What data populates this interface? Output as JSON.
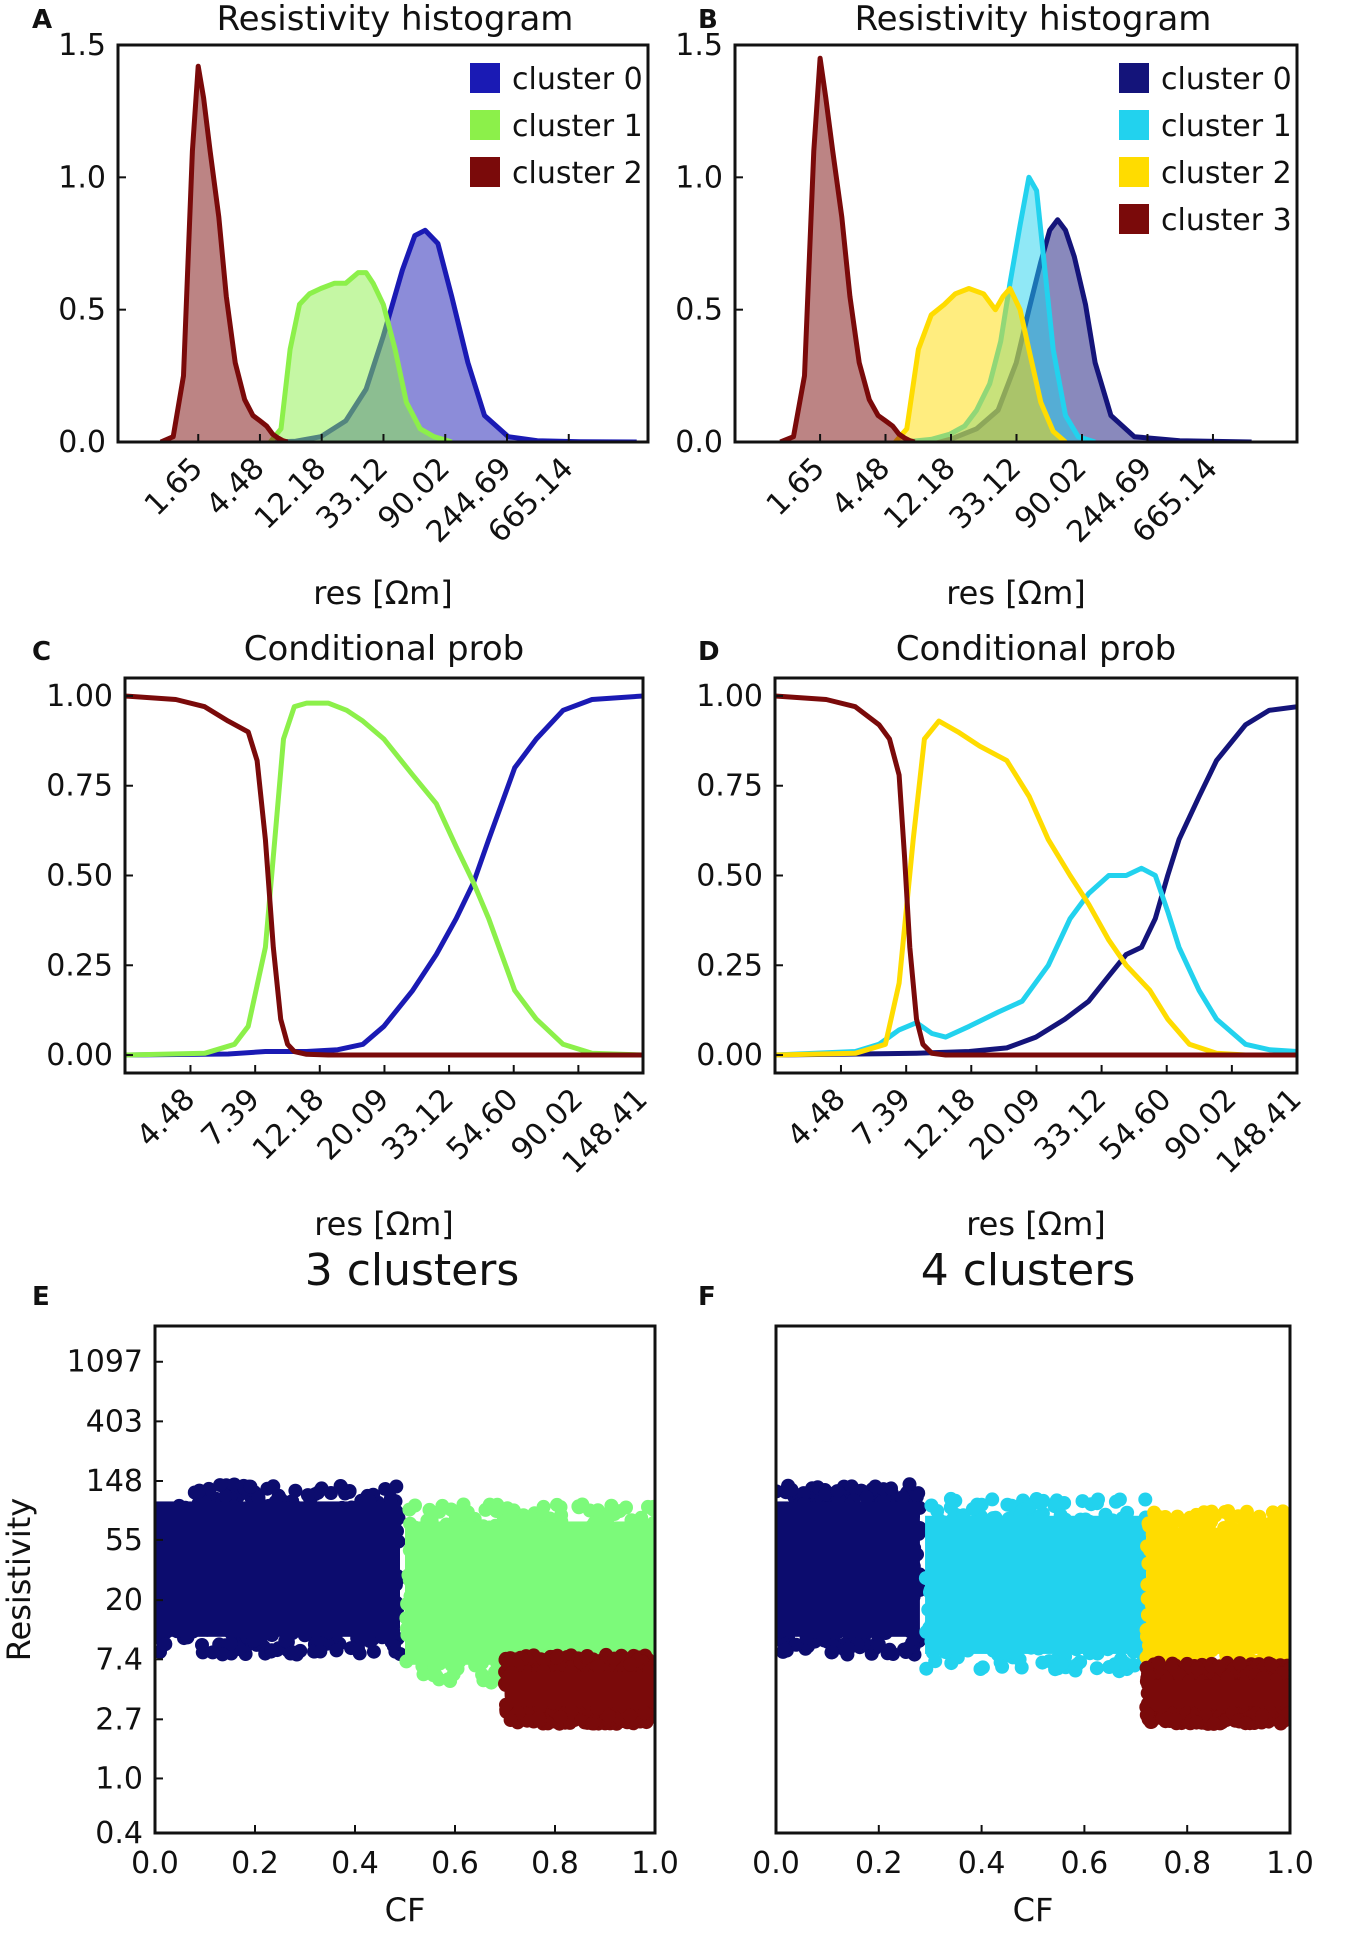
{
  "colors": {
    "c0_3": "#1a1ab4",
    "c1_3": "#8cf04a",
    "c2_3": "#7a0a0a",
    "c0_4": "#14147a",
    "c1_4": "#22d2ee",
    "c2_4": "#ffdc00",
    "c3_4": "#7a0a0a",
    "c0_4_scatter": "#0c0c6e",
    "c1_3_scatter": "#7cfa7a"
  },
  "chart_data": [
    {
      "id": "A",
      "letter": "A",
      "type": "area",
      "title": "Resistivity histogram",
      "xlabel": "res [Ωm]",
      "ylabel": "",
      "x_scale": "log",
      "xlim": [
        0.45,
        2400
      ],
      "ylim": [
        0,
        1.5
      ],
      "yticks": [
        0.0,
        0.5,
        1.0,
        1.5
      ],
      "yticklabels": [
        "0.0",
        "0.5",
        "1.0",
        "1.5"
      ],
      "xticks": [
        1.65,
        4.48,
        12.18,
        33.12,
        90.02,
        244.69,
        665.14
      ],
      "xticklabels": [
        "1.65",
        "4.48",
        "12.18",
        "33.12",
        "90.02",
        "244.69",
        "665.14"
      ],
      "legend": [
        "cluster 0",
        "cluster 1",
        "cluster 2"
      ],
      "series": [
        {
          "name": "cluster 0",
          "color_key": "c0_3",
          "x": [
            5.5,
            8,
            12,
            18,
            25,
            33,
            45,
            55,
            65,
            80,
            100,
            130,
            170,
            250,
            400,
            800,
            2000
          ],
          "y": [
            0,
            0.003,
            0.02,
            0.08,
            0.2,
            0.4,
            0.65,
            0.78,
            0.8,
            0.75,
            0.55,
            0.3,
            0.1,
            0.02,
            0.005,
            0.001,
            0
          ]
        },
        {
          "name": "cluster 1",
          "color_key": "c1_3",
          "x": [
            5.3,
            6.3,
            7.3,
            8.5,
            10,
            12,
            15,
            18,
            22,
            25,
            28,
            33,
            40,
            48,
            60,
            75,
            100
          ],
          "y": [
            0,
            0.05,
            0.35,
            0.52,
            0.56,
            0.58,
            0.6,
            0.6,
            0.64,
            0.64,
            0.6,
            0.52,
            0.35,
            0.15,
            0.05,
            0.02,
            0
          ]
        },
        {
          "name": "cluster 2",
          "color_key": "c2_3",
          "x": [
            0.9,
            1.1,
            1.3,
            1.5,
            1.65,
            1.8,
            2.0,
            2.3,
            2.6,
            3.0,
            3.5,
            4.0,
            4.48,
            5.0,
            5.5,
            6.0,
            6.5,
            7.0
          ],
          "y": [
            0,
            0.02,
            0.25,
            1.1,
            1.42,
            1.3,
            1.1,
            0.85,
            0.55,
            0.3,
            0.16,
            0.1,
            0.08,
            0.06,
            0.03,
            0.015,
            0.005,
            0
          ]
        }
      ]
    },
    {
      "id": "B",
      "letter": "B",
      "type": "area",
      "title": "Resistivity histogram",
      "xlabel": "res [Ωm]",
      "ylabel": "",
      "x_scale": "log",
      "xlim": [
        0.45,
        2400
      ],
      "ylim": [
        0,
        1.5
      ],
      "yticks": [
        0.0,
        0.5,
        1.0,
        1.5
      ],
      "yticklabels": [
        "0.0",
        "0.5",
        "1.0",
        "1.5"
      ],
      "xticks": [
        1.65,
        4.48,
        12.18,
        33.12,
        90.02,
        244.69,
        665.14
      ],
      "xticklabels": [
        "1.65",
        "4.48",
        "12.18",
        "33.12",
        "90.02",
        "244.69",
        "665.14"
      ],
      "legend": [
        "cluster 0",
        "cluster 1",
        "cluster 2",
        "cluster 3"
      ],
      "series": [
        {
          "name": "cluster 0",
          "color_key": "c0_4",
          "x": [
            8,
            12,
            18,
            25,
            33,
            40,
            48,
            55,
            62,
            70,
            80,
            95,
            110,
            140,
            200,
            400,
            1200
          ],
          "y": [
            0,
            0.01,
            0.05,
            0.12,
            0.3,
            0.5,
            0.68,
            0.8,
            0.84,
            0.8,
            0.7,
            0.52,
            0.3,
            0.1,
            0.02,
            0.005,
            0
          ]
        },
        {
          "name": "cluster 1",
          "color_key": "c1_4",
          "x": [
            6,
            9,
            12,
            15,
            18,
            22,
            26,
            30,
            35,
            40,
            45,
            50,
            58,
            70,
            85,
            110
          ],
          "y": [
            0,
            0.01,
            0.03,
            0.06,
            0.12,
            0.22,
            0.38,
            0.6,
            0.82,
            1.0,
            0.95,
            0.7,
            0.35,
            0.1,
            0.02,
            0
          ]
        },
        {
          "name": "cluster 2",
          "color_key": "c2_4",
          "x": [
            5.2,
            6.2,
            7.4,
            9,
            11,
            13,
            16,
            20,
            24,
            27,
            30,
            35,
            40,
            48,
            58,
            70
          ],
          "y": [
            0,
            0.05,
            0.35,
            0.48,
            0.52,
            0.56,
            0.58,
            0.56,
            0.5,
            0.55,
            0.58,
            0.5,
            0.35,
            0.15,
            0.04,
            0
          ]
        },
        {
          "name": "cluster 3",
          "color_key": "c3_4",
          "x": [
            0.9,
            1.1,
            1.3,
            1.5,
            1.65,
            1.8,
            2.0,
            2.3,
            2.6,
            3.0,
            3.5,
            4.0,
            4.48,
            5.0,
            5.5,
            6.0,
            6.5,
            7.0
          ],
          "y": [
            0,
            0.02,
            0.25,
            1.1,
            1.45,
            1.3,
            1.1,
            0.85,
            0.55,
            0.3,
            0.16,
            0.1,
            0.08,
            0.06,
            0.03,
            0.015,
            0.005,
            0
          ]
        }
      ]
    },
    {
      "id": "C",
      "letter": "C",
      "type": "line",
      "title": "Conditional prob",
      "xlabel": "res [Ωm]",
      "ylabel": "",
      "x_scale": "log",
      "xlim": [
        2.7,
        148.41
      ],
      "ylim": [
        -0.05,
        1.05
      ],
      "yticks": [
        0.0,
        0.25,
        0.5,
        0.75,
        1.0
      ],
      "yticklabels": [
        "0.00",
        "0.25",
        "0.50",
        "0.75",
        "1.00"
      ],
      "xticks": [
        4.48,
        7.39,
        12.18,
        20.09,
        33.12,
        54.6,
        90.02,
        148.41
      ],
      "xticklabels": [
        "4.48",
        "7.39",
        "12.18",
        "20.09",
        "33.12",
        "54.60",
        "90.02",
        "148.41"
      ],
      "series": [
        {
          "name": "cluster 0",
          "color_key": "c0_3",
          "x": [
            2.7,
            6,
            8,
            11,
            14,
            17,
            20,
            25,
            30,
            35,
            40,
            45,
            55,
            65,
            80,
            100,
            148.41
          ],
          "y": [
            0,
            0.003,
            0.01,
            0.01,
            0.015,
            0.03,
            0.08,
            0.18,
            0.28,
            0.38,
            0.48,
            0.6,
            0.8,
            0.88,
            0.96,
            0.99,
            1.0
          ]
        },
        {
          "name": "cluster 1",
          "color_key": "c1_3",
          "x": [
            2.7,
            5,
            6.3,
            7,
            8,
            8.6,
            9.2,
            10,
            11,
            13,
            15,
            17,
            20,
            25,
            30,
            35,
            40,
            45,
            55,
            65,
            80,
            100,
            148.41
          ],
          "y": [
            0,
            0.005,
            0.03,
            0.08,
            0.3,
            0.6,
            0.88,
            0.97,
            0.98,
            0.98,
            0.96,
            0.93,
            0.88,
            0.78,
            0.7,
            0.58,
            0.48,
            0.38,
            0.18,
            0.1,
            0.03,
            0.005,
            0
          ]
        },
        {
          "name": "cluster 2",
          "color_key": "c2_3",
          "x": [
            2.7,
            4,
            5,
            6,
            7,
            7.5,
            8,
            8.5,
            9,
            9.5,
            10,
            11,
            13,
            148.41
          ],
          "y": [
            1.0,
            0.99,
            0.97,
            0.93,
            0.9,
            0.82,
            0.6,
            0.3,
            0.1,
            0.03,
            0.01,
            0.002,
            0,
            0
          ]
        }
      ]
    },
    {
      "id": "D",
      "letter": "D",
      "type": "line",
      "title": "Conditional prob",
      "xlabel": "res [Ωm]",
      "ylabel": "",
      "x_scale": "log",
      "xlim": [
        2.7,
        148.41
      ],
      "ylim": [
        -0.05,
        1.05
      ],
      "yticks": [
        0.0,
        0.25,
        0.5,
        0.75,
        1.0
      ],
      "yticklabels": [
        "0.00",
        "0.25",
        "0.50",
        "0.75",
        "1.00"
      ],
      "xticks": [
        4.48,
        7.39,
        12.18,
        20.09,
        33.12,
        54.6,
        90.02,
        148.41
      ],
      "xticklabels": [
        "4.48",
        "7.39",
        "12.18",
        "20.09",
        "33.12",
        "54.60",
        "90.02",
        "148.41"
      ],
      "series": [
        {
          "name": "cluster 0",
          "color_key": "c0_4",
          "x": [
            2.7,
            8,
            12,
            16,
            20,
            25,
            30,
            35,
            40,
            45,
            50,
            55,
            60,
            70,
            80,
            100,
            120,
            148.41
          ],
          "y": [
            0,
            0.005,
            0.01,
            0.02,
            0.05,
            0.1,
            0.15,
            0.22,
            0.28,
            0.3,
            0.38,
            0.5,
            0.6,
            0.72,
            0.82,
            0.92,
            0.96,
            0.97
          ]
        },
        {
          "name": "cluster 1",
          "color_key": "c1_4",
          "x": [
            2.7,
            5,
            6,
            7,
            8,
            9,
            10,
            12,
            15,
            18,
            22,
            26,
            30,
            35,
            40,
            45,
            50,
            55,
            60,
            70,
            80,
            100,
            120,
            148.41
          ],
          "y": [
            0,
            0.01,
            0.03,
            0.07,
            0.09,
            0.06,
            0.05,
            0.08,
            0.12,
            0.15,
            0.25,
            0.38,
            0.45,
            0.5,
            0.5,
            0.52,
            0.5,
            0.4,
            0.3,
            0.18,
            0.1,
            0.03,
            0.015,
            0.01
          ]
        },
        {
          "name": "cluster 2",
          "color_key": "c2_4",
          "x": [
            2.7,
            5,
            6.3,
            7,
            7.8,
            8.5,
            9.5,
            11,
            13,
            16,
            19,
            22,
            26,
            30,
            35,
            40,
            48,
            55,
            65,
            80,
            100,
            148.41
          ],
          "y": [
            0,
            0.005,
            0.03,
            0.2,
            0.6,
            0.88,
            0.93,
            0.9,
            0.86,
            0.82,
            0.72,
            0.6,
            0.5,
            0.42,
            0.32,
            0.25,
            0.18,
            0.1,
            0.03,
            0.005,
            0,
            0
          ]
        },
        {
          "name": "cluster 3",
          "color_key": "c3_4",
          "x": [
            2.7,
            4,
            5,
            6,
            6.5,
            7,
            7.3,
            7.6,
            8,
            8.4,
            9,
            10,
            148.41
          ],
          "y": [
            1.0,
            0.99,
            0.97,
            0.92,
            0.88,
            0.78,
            0.55,
            0.3,
            0.1,
            0.03,
            0.005,
            0,
            0
          ]
        }
      ]
    },
    {
      "id": "E",
      "letter": "E",
      "type": "scatter",
      "title": "3 clusters",
      "xlabel": "CF",
      "ylabel": "Resistivity",
      "x_scale": "linear",
      "y_scale": "log",
      "xlim": [
        0.0,
        1.0
      ],
      "ylim": [
        0.4,
        2000
      ],
      "xticks": [
        0.0,
        0.2,
        0.4,
        0.6,
        0.8,
        1.0
      ],
      "xticklabels": [
        "0.0",
        "0.2",
        "0.4",
        "0.6",
        "0.8",
        "1.0"
      ],
      "yticks": [
        0.4,
        1.0,
        2.7,
        7.4,
        20,
        55,
        148,
        403,
        1097
      ],
      "yticklabels": [
        "0.4",
        "1.0",
        "2.7",
        "7.4",
        "20",
        "55",
        "148",
        "403",
        "1097"
      ],
      "clusters": [
        {
          "name": "cluster 0",
          "color_key": "c0_4_scatter",
          "cf_range": [
            0.0,
            0.49
          ],
          "res_range": [
            8,
            140
          ],
          "split_at": 0.49
        },
        {
          "name": "cluster 1",
          "color_key": "c1_3_scatter",
          "cf_range": [
            0.5,
            1.0
          ],
          "res_range": [
            5,
            100
          ]
        },
        {
          "name": "cluster 2",
          "color_key": "c2_3",
          "cf_range": [
            0.7,
            1.0
          ],
          "res_range": [
            2.5,
            8
          ]
        }
      ]
    },
    {
      "id": "F",
      "letter": "F",
      "type": "scatter",
      "title": "4 clusters",
      "xlabel": "CF",
      "ylabel": "",
      "x_scale": "linear",
      "y_scale": "log",
      "xlim": [
        0.0,
        1.0
      ],
      "ylim": [
        0.4,
        2000
      ],
      "xticks": [
        0.0,
        0.2,
        0.4,
        0.6,
        0.8,
        1.0
      ],
      "xticklabels": [
        "0.0",
        "0.2",
        "0.4",
        "0.6",
        "0.8",
        "1.0"
      ],
      "clusters": [
        {
          "name": "cluster 0",
          "color_key": "c0_4_scatter",
          "cf_range": [
            0.0,
            0.28
          ],
          "res_range": [
            8,
            140
          ]
        },
        {
          "name": "cluster 1",
          "color_key": "c1_4",
          "cf_range": [
            0.29,
            0.72
          ],
          "res_range": [
            6,
            110
          ]
        },
        {
          "name": "cluster 2",
          "color_key": "c2_4",
          "cf_range": [
            0.72,
            1.0
          ],
          "res_range": [
            6,
            90
          ]
        },
        {
          "name": "cluster 3",
          "color_key": "c3_4",
          "cf_range": [
            0.72,
            1.0
          ],
          "res_range": [
            2.5,
            7
          ]
        }
      ]
    }
  ]
}
